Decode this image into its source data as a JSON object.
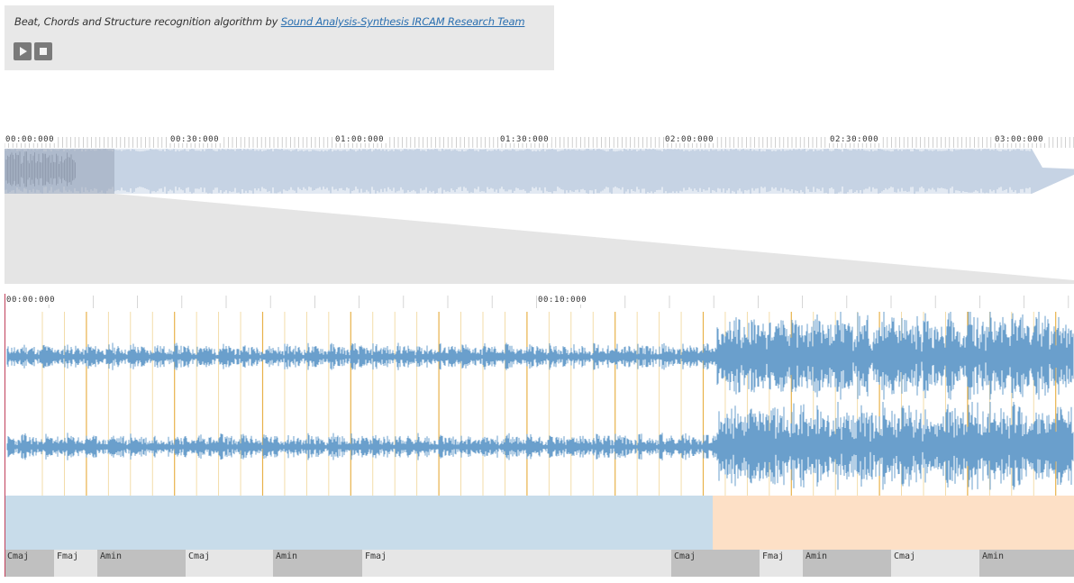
{
  "header": {
    "credit_text": "Beat, Chords and Structure recognition algorithm by ",
    "credit_link": "Sound Analysis-Synthesis IRCAM Research Team",
    "play_icon": "play-icon",
    "stop_icon": "stop-icon"
  },
  "overview": {
    "time_labels": [
      "00:00:000",
      "00:30:000",
      "01:00:000",
      "01:30:000",
      "02:00:000",
      "02:30:000",
      "03:00:000"
    ],
    "waveform_color": "#c6d3e4",
    "selection_color": "#9aa6b8"
  },
  "detail": {
    "time_labels": [
      "00:00:000",
      "00:10:000"
    ],
    "waveform_color": "#6a9fcc",
    "beat_color": "#f2d9a0",
    "downbeat_color": "#e8b24a"
  },
  "segments": [
    {
      "label": "",
      "color": "#c8dcea",
      "fraction": 0.662
    },
    {
      "label": "",
      "color": "#fde0c6",
      "fraction": 0.338
    }
  ],
  "chords": [
    {
      "label": "Cmaj",
      "color": "#c0c0c0"
    },
    {
      "label": "Fmaj",
      "color": "#e6e6e6"
    },
    {
      "label": "Amin",
      "color": "#c0c0c0"
    },
    {
      "label": "Cmaj",
      "color": "#e6e6e6"
    },
    {
      "label": "Amin",
      "color": "#c0c0c0"
    },
    {
      "label": "Fmaj",
      "color": "#e6e6e6"
    },
    {
      "label": "Cmaj",
      "color": "#c0c0c0"
    },
    {
      "label": "Fmaj",
      "color": "#e6e6e6"
    },
    {
      "label": "Amin",
      "color": "#c0c0c0"
    },
    {
      "label": "Cmaj",
      "color": "#e6e6e6"
    },
    {
      "label": "Amin",
      "color": "#c0c0c0"
    }
  ]
}
